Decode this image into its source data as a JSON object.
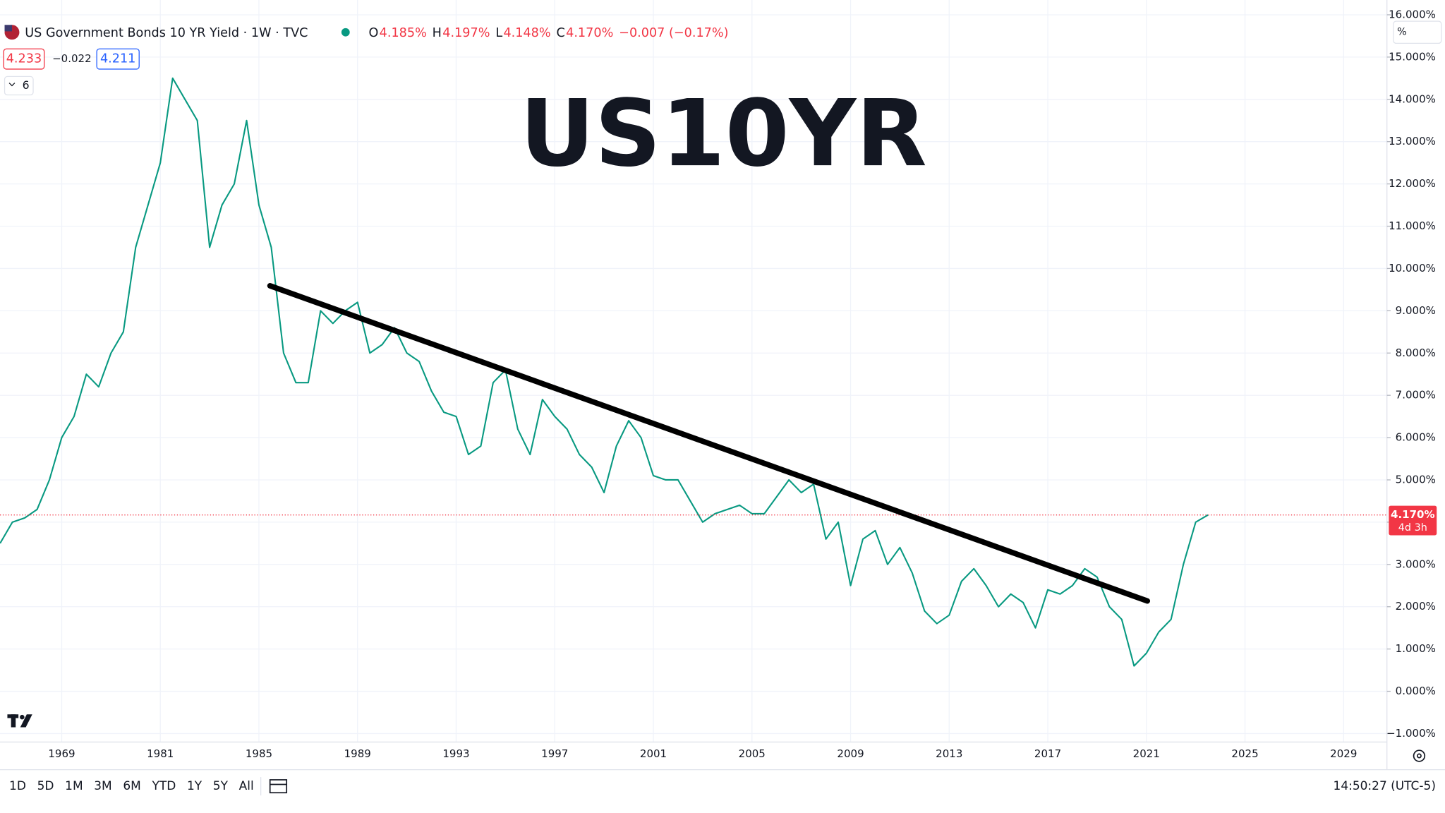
{
  "chart_data": {
    "type": "line",
    "title": "US Government Bonds 10 YR Yield · 1W · TVC",
    "overlay_title": "US10YR",
    "ohlc": [
      {
        "label": "O",
        "value": "4.185%"
      },
      {
        "label": "H",
        "value": "4.197%"
      },
      {
        "label": "L",
        "value": "4.148%"
      },
      {
        "label": "C",
        "value": "4.170%"
      }
    ],
    "change": "−0.007 (−0.17%)",
    "bid": "4.233",
    "spread": "−0.022",
    "ask": "4.211",
    "indicators_count": "6",
    "scale_mode": "%",
    "last_price": 4.17,
    "last_price_label": "4.170%",
    "countdown": "4d 3h",
    "timeframes": [
      "1D",
      "5D",
      "1M",
      "3M",
      "6M",
      "YTD",
      "1Y",
      "5Y",
      "All"
    ],
    "clock": "14:50:27 (UTC-5)",
    "categories": [
      null,
      null,
      null,
      null,
      null,
      "1969",
      null,
      null,
      null,
      null,
      null,
      null,
      null,
      "1981",
      null,
      null,
      null,
      null,
      null,
      null,
      null,
      "1985",
      null,
      null,
      null,
      null,
      null,
      null,
      null,
      "1989",
      null,
      null,
      null,
      null,
      null,
      null,
      null,
      "1993",
      null,
      null,
      null,
      null,
      null,
      null,
      null,
      "1997",
      null,
      null,
      null,
      null,
      null,
      null,
      null,
      "2001",
      null,
      null,
      null,
      null,
      null,
      null,
      null,
      "2005",
      null,
      null,
      null,
      null,
      null,
      null,
      null,
      "2009",
      null,
      null,
      null,
      null,
      null,
      null,
      null,
      "2013",
      null,
      null,
      null,
      null,
      null,
      null,
      null,
      "2017",
      null,
      null,
      null,
      null,
      null,
      null,
      null,
      "2021",
      null,
      null,
      null,
      null,
      null,
      null,
      null,
      "2025",
      null,
      null,
      null,
      null,
      null,
      null,
      null,
      "2029",
      null,
      null,
      null
    ],
    "series": [
      {
        "name": "US10Y",
        "color": "#089981",
        "values": [
          3.5,
          4.0,
          4.1,
          4.3,
          5.0,
          6.0,
          6.5,
          7.5,
          7.2,
          8.0,
          8.5,
          10.5,
          11.5,
          12.5,
          14.5,
          14.0,
          13.5,
          10.5,
          11.5,
          12.0,
          13.5,
          11.5,
          10.5,
          8.0,
          7.3,
          7.3,
          9.0,
          8.7,
          9.0,
          9.2,
          8.0,
          8.2,
          8.6,
          8.0,
          7.8,
          7.1,
          6.6,
          6.5,
          5.6,
          5.8,
          7.3,
          7.6,
          6.2,
          5.6,
          6.9,
          6.5,
          6.2,
          5.6,
          5.3,
          4.7,
          5.8,
          6.4,
          6.0,
          5.1,
          5.0,
          5.0,
          4.5,
          4.0,
          4.2,
          4.3,
          4.4,
          4.2,
          4.2,
          4.6,
          5.0,
          4.7,
          4.9,
          3.6,
          4.0,
          2.5,
          3.6,
          3.8,
          3.0,
          3.4,
          2.8,
          1.9,
          1.6,
          1.8,
          2.6,
          2.9,
          2.5,
          2.0,
          2.3,
          2.1,
          1.5,
          2.4,
          2.3,
          2.5,
          2.9,
          2.7,
          2.0,
          1.7,
          0.6,
          0.9,
          1.4,
          1.7,
          3.0,
          4.0,
          4.17,
          null,
          null,
          null,
          null,
          null,
          null,
          null,
          null,
          null,
          null,
          null,
          null,
          null,
          null
        ]
      }
    ],
    "ylim": [
      -1.2,
      16.35
    ],
    "yticks": [
      {
        "value": -1,
        "label": "−1.000%"
      },
      {
        "value": 0,
        "label": "0.000%"
      },
      {
        "value": 1,
        "label": "1.000%"
      },
      {
        "value": 2,
        "label": "2.000%"
      },
      {
        "value": 3,
        "label": "3.000%"
      },
      {
        "value": 4,
        "label": "4.000%"
      },
      {
        "value": 5,
        "label": "5.000%"
      },
      {
        "value": 6,
        "label": "6.000%"
      },
      {
        "value": 7,
        "label": "7.000%"
      },
      {
        "value": 8,
        "label": "8.000%"
      },
      {
        "value": 9,
        "label": "9.000%"
      },
      {
        "value": 10,
        "label": "10.000%"
      },
      {
        "value": 11,
        "label": "11.000%"
      },
      {
        "value": 12,
        "label": "12.000%"
      },
      {
        "value": 13,
        "label": "13.000%"
      },
      {
        "value": 14,
        "label": "14.000%"
      },
      {
        "value": 15,
        "label": "15.000%"
      },
      {
        "value": 16,
        "label": "16.000%"
      }
    ],
    "grid": true,
    "last_price_color": "#f23645"
  }
}
